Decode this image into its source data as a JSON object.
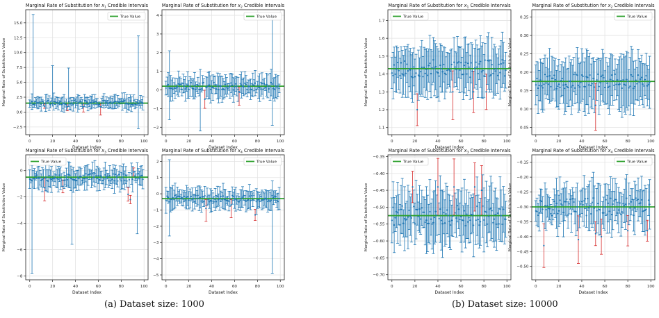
{
  "captions": {
    "a": "(a) Dataset size: 1000",
    "b": "(b) Dataset size: 10000"
  },
  "colors": {
    "interval": "#1f77b4",
    "interval_miss": "#d62728",
    "true_value": "#2ca02c",
    "estimate": "#1f77b4"
  },
  "chart_data": [
    {
      "type": "scatter",
      "panel": "a",
      "seed": 11,
      "title": "Marginal Rate of Substitution for x1 Credible Intervals",
      "title_prefix": "Marginal Rate of Substitution for ",
      "var": "x",
      "sub": "1",
      "title_suffix": " Credible Intervals",
      "xlabel": "Dataset Index",
      "ylabel": "Marginal Rate of Substitution Value",
      "legend": "True Value",
      "legend_position": "top-right",
      "grid": true,
      "xlim": [
        -3.5,
        103.5
      ],
      "ylim": [
        -3.8,
        17.2
      ],
      "xticks": [
        0,
        20,
        40,
        60,
        80,
        100
      ],
      "xtick_labels": [
        "0",
        "20",
        "40",
        "60",
        "80",
        "100"
      ],
      "yticks": [
        -2.5,
        0.0,
        2.5,
        5.0,
        7.5,
        10.0,
        12.5,
        15.0
      ],
      "ytick_labels": [
        "−2.5",
        "0.0",
        "2.5",
        "5.0",
        "7.5",
        "10.0",
        "12.5",
        "15.0"
      ],
      "true_value": 1.5,
      "n": 100,
      "est_mean": 1.6,
      "est_jitter": 0.35,
      "half_width_base": 0.9,
      "half_width_jitter": 0.6,
      "outliers": [
        {
          "index": 3,
          "low": 0.8,
          "high": 16.4
        },
        {
          "index": 20,
          "low": 1.0,
          "high": 7.8
        },
        {
          "index": 34,
          "low": 0.9,
          "high": 7.4
        },
        {
          "index": 95,
          "low": -2.8,
          "high": 12.8
        }
      ],
      "misses": [
        {
          "index": 13,
          "center": 1.0
        },
        {
          "index": 33,
          "center": 0.9
        },
        {
          "index": 47,
          "center": 0.9
        },
        {
          "index": 62,
          "center": 0.9
        }
      ]
    },
    {
      "type": "scatter",
      "panel": "a",
      "seed": 23,
      "title": "Marginal Rate of Substitution for x2 Credible Intervals",
      "title_prefix": "Marginal Rate of Substitution for ",
      "var": "x",
      "sub": "2",
      "title_suffix": " Credible Intervals",
      "xlabel": "Dataset Index",
      "ylabel": "",
      "legend": "True Value",
      "legend_position": "top-right",
      "grid": true,
      "xlim": [
        -3.5,
        103.5
      ],
      "ylim": [
        -2.4,
        4.3
      ],
      "xticks": [
        0,
        20,
        40,
        60,
        80,
        100
      ],
      "xtick_labels": [
        "0",
        "20",
        "40",
        "60",
        "80",
        "100"
      ],
      "yticks": [
        -2,
        -1,
        0,
        1,
        2,
        3,
        4
      ],
      "ytick_labels": [
        "−2",
        "−1",
        "0",
        "1",
        "2",
        "3",
        "4"
      ],
      "true_value": 0.2,
      "n": 100,
      "est_mean": 0.2,
      "est_jitter": 0.2,
      "half_width_base": 0.45,
      "half_width_jitter": 0.3,
      "outliers": [
        {
          "index": 3,
          "low": -1.6,
          "high": 2.1
        },
        {
          "index": 30,
          "low": -2.2,
          "high": 1.1
        },
        {
          "index": 93,
          "low": -1.9,
          "high": 4.0
        }
      ],
      "misses": [
        {
          "index": 34,
          "center": -0.5
        },
        {
          "index": 64,
          "center": -0.1
        }
      ]
    },
    {
      "type": "scatter",
      "panel": "a",
      "seed": 37,
      "title": "Marginal Rate of Substitution for x3 Credible Intervals",
      "title_prefix": "Marginal Rate of Substitution for ",
      "var": "x",
      "sub": "3",
      "title_suffix": " Credible Intervals",
      "xlabel": "Dataset Index",
      "ylabel": "Marginal Rate of Substitution Value",
      "legend": "True Value",
      "legend_position": "top-left",
      "grid": true,
      "xlim": [
        -3.5,
        103.5
      ],
      "ylim": [
        -8.3,
        1.2
      ],
      "xticks": [
        0,
        20,
        40,
        60,
        80,
        100
      ],
      "xtick_labels": [
        "0",
        "20",
        "40",
        "60",
        "80",
        "100"
      ],
      "yticks": [
        -8,
        -6,
        -4,
        -2,
        0
      ],
      "ytick_labels": [
        "−8",
        "−6",
        "−4",
        "−2",
        "0"
      ],
      "true_value": -0.5,
      "n": 100,
      "est_mean": -0.5,
      "est_jitter": 0.3,
      "half_width_base": 0.6,
      "half_width_jitter": 0.4,
      "outliers": [
        {
          "index": 2,
          "low": -7.8,
          "high": 0.4
        },
        {
          "index": 37,
          "low": -5.6,
          "high": 0.1
        },
        {
          "index": 94,
          "low": -4.8,
          "high": 0.6
        }
      ],
      "misses": [
        {
          "index": 13,
          "center": -1.3
        },
        {
          "index": 29,
          "center": -1.2
        },
        {
          "index": 86,
          "center": -1.8
        },
        {
          "index": 88,
          "center": -2.2
        },
        {
          "index": 91,
          "center": -0.1
        }
      ]
    },
    {
      "type": "scatter",
      "panel": "a",
      "seed": 41,
      "title": "Marginal Rate of Substitution for x4 Credible Intervals",
      "title_prefix": "Marginal Rate of Substitution for ",
      "var": "x",
      "sub": "4",
      "title_suffix": " Credible Intervals",
      "xlabel": "Dataset Index",
      "ylabel": "",
      "legend": "True Value",
      "legend_position": "top-right",
      "grid": true,
      "xlim": [
        -3.5,
        103.5
      ],
      "ylim": [
        -5.3,
        2.4
      ],
      "xticks": [
        0,
        20,
        40,
        60,
        80,
        100
      ],
      "xtick_labels": [
        "0",
        "20",
        "40",
        "60",
        "80",
        "100"
      ],
      "yticks": [
        -5,
        -4,
        -3,
        -2,
        -1,
        0,
        1,
        2
      ],
      "ytick_labels": [
        "−5",
        "−4",
        "−3",
        "−2",
        "−1",
        "0",
        "1",
        "2"
      ],
      "true_value": -0.3,
      "n": 100,
      "est_mean": -0.3,
      "est_jitter": 0.2,
      "half_width_base": 0.5,
      "half_width_jitter": 0.3,
      "outliers": [
        {
          "index": 3,
          "low": -2.6,
          "high": 2.1
        },
        {
          "index": 93,
          "low": -4.9,
          "high": 0.8
        }
      ],
      "misses": [
        {
          "index": 35,
          "center": -0.9
        },
        {
          "index": 57,
          "center": -0.7
        },
        {
          "index": 78,
          "center": -1.3
        }
      ]
    },
    {
      "type": "scatter",
      "panel": "b",
      "seed": 53,
      "title": "Marginal Rate of Substitution for x1 Credible Intervals",
      "title_prefix": "Marginal Rate of Substitution for ",
      "var": "x",
      "sub": "1",
      "title_suffix": " Credible Intervals",
      "xlabel": "Dataset Index",
      "ylabel": "Marginal Rate of Substitution Value",
      "legend": "True Value",
      "legend_position": "top-left",
      "grid": true,
      "xlim": [
        -3.5,
        103.5
      ],
      "ylim": [
        1.06,
        1.76
      ],
      "xticks": [
        0,
        20,
        40,
        60,
        80,
        100
      ],
      "xtick_labels": [
        "0",
        "20",
        "40",
        "60",
        "80",
        "100"
      ],
      "yticks": [
        1.1,
        1.2,
        1.3,
        1.4,
        1.5,
        1.6,
        1.7
      ],
      "ytick_labels": [
        "1.1",
        "1.2",
        "1.3",
        "1.4",
        "1.5",
        "1.6",
        "1.7"
      ],
      "true_value": 1.43,
      "n": 100,
      "est_mean": 1.43,
      "est_jitter": 0.05,
      "half_width_base": 0.12,
      "half_width_jitter": 0.04,
      "outliers": [],
      "misses": [
        {
          "index": 22,
          "center": 1.2
        },
        {
          "index": 53,
          "center": 1.3
        },
        {
          "index": 71,
          "center": 1.3
        },
        {
          "index": 82,
          "center": 1.3
        }
      ]
    },
    {
      "type": "scatter",
      "panel": "b",
      "seed": 67,
      "title": "Marginal Rate of Substitution for x2 Credible Intervals",
      "title_prefix": "Marginal Rate of Substitution for ",
      "var": "x",
      "sub": "2",
      "title_suffix": " Credible Intervals",
      "xlabel": "Dataset Index",
      "ylabel": "Marginal Rate of Substitution Value",
      "legend": "True Value",
      "legend_position": "top-right",
      "grid": true,
      "xlim": [
        -3.5,
        103.5
      ],
      "ylim": [
        0.03,
        0.37
      ],
      "xticks": [
        0,
        20,
        40,
        60,
        80,
        100
      ],
      "xtick_labels": [
        "0",
        "20",
        "40",
        "60",
        "80",
        "100"
      ],
      "yticks": [
        0.05,
        0.1,
        0.15,
        0.2,
        0.25,
        0.3,
        0.35
      ],
      "ytick_labels": [
        "0.05",
        "0.10",
        "0.15",
        "0.20",
        "0.25",
        "0.30",
        "0.35"
      ],
      "true_value": 0.175,
      "n": 100,
      "est_mean": 0.175,
      "est_jitter": 0.02,
      "half_width_base": 0.06,
      "half_width_jitter": 0.02,
      "outliers": [],
      "misses": [
        {
          "index": 52,
          "center": 0.11
        }
      ]
    },
    {
      "type": "scatter",
      "panel": "b",
      "seed": 79,
      "title": "Marginal Rate of Substitution for x3 Credible Intervals",
      "title_prefix": "Marginal Rate of Substitution for ",
      "var": "x",
      "sub": "3",
      "title_suffix": " Credible Intervals",
      "xlabel": "Dataset Index",
      "ylabel": "Marginal Rate of Substitution Value",
      "legend": "True Value",
      "legend_position": "top-left",
      "grid": true,
      "xlim": [
        -3.5,
        103.5
      ],
      "ylim": [
        -0.715,
        -0.345
      ],
      "xticks": [
        0,
        20,
        40,
        60,
        80,
        100
      ],
      "xtick_labels": [
        "0",
        "20",
        "40",
        "60",
        "80",
        "100"
      ],
      "yticks": [
        -0.7,
        -0.65,
        -0.6,
        -0.55,
        -0.5,
        -0.45,
        -0.4,
        -0.35
      ],
      "ytick_labels": [
        "−0.70",
        "−0.65",
        "−0.60",
        "−0.55",
        "−0.50",
        "−0.45",
        "−0.40",
        "−0.35"
      ],
      "true_value": -0.525,
      "n": 100,
      "est_mean": -0.525,
      "est_jitter": 0.03,
      "half_width_base": 0.07,
      "half_width_jitter": 0.03,
      "outliers": [],
      "misses": [
        {
          "index": 18,
          "center": -0.44
        },
        {
          "index": 40,
          "center": -0.44
        },
        {
          "index": 54,
          "center": -0.44
        },
        {
          "index": 72,
          "center": -0.44
        },
        {
          "index": 78,
          "center": -0.45
        }
      ]
    },
    {
      "type": "scatter",
      "panel": "b",
      "seed": 97,
      "title": "Marginal Rate of Substitution for x4 Credible Intervals",
      "title_prefix": "Marginal Rate of Substitution for ",
      "var": "x",
      "sub": "4",
      "title_suffix": " Credible Intervals",
      "xlabel": "Dataset Index",
      "ylabel": "Marginal Rate of Substitution Value",
      "legend": "True Value",
      "legend_position": "top-right",
      "grid": true,
      "xlim": [
        -3.5,
        103.5
      ],
      "ylim": [
        -0.545,
        -0.125
      ],
      "xticks": [
        0,
        20,
        40,
        60,
        80,
        100
      ],
      "xtick_labels": [
        "0",
        "20",
        "40",
        "60",
        "80",
        "100"
      ],
      "yticks": [
        -0.5,
        -0.45,
        -0.4,
        -0.35,
        -0.3,
        -0.25,
        -0.2,
        -0.15
      ],
      "ytick_labels": [
        "−0.50",
        "−0.45",
        "−0.40",
        "−0.35",
        "−0.30",
        "−0.25",
        "−0.20",
        "−0.15"
      ],
      "true_value": -0.3,
      "n": 100,
      "est_mean": -0.3,
      "est_jitter": 0.03,
      "half_width_base": 0.06,
      "half_width_jitter": 0.03,
      "outliers": [],
      "misses": [
        {
          "index": 7,
          "center": -0.43
        },
        {
          "index": 37,
          "center": -0.41
        },
        {
          "index": 52,
          "center": -0.39
        },
        {
          "index": 57,
          "center": -0.4
        },
        {
          "index": 80,
          "center": -0.38
        },
        {
          "index": 97,
          "center": -0.38
        }
      ]
    }
  ]
}
